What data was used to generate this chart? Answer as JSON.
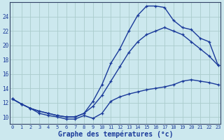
{
  "title": "",
  "xlabel": "Graphe des températures (°c)",
  "ylabel": "",
  "background_color": "#cce8ee",
  "grid_color": "#aacccc",
  "line_color": "#1a3a9a",
  "xlim": [
    -0.3,
    23.3
  ],
  "ylim": [
    9.0,
    26.0
  ],
  "yticks": [
    10,
    12,
    14,
    16,
    18,
    20,
    22,
    24
  ],
  "xticks": [
    0,
    1,
    2,
    3,
    4,
    5,
    6,
    7,
    8,
    9,
    10,
    11,
    12,
    13,
    14,
    15,
    16,
    17,
    18,
    19,
    20,
    21,
    22,
    23
  ],
  "curve_min_x": [
    0,
    1,
    2,
    3,
    4,
    5,
    6,
    7,
    8,
    9,
    10,
    11,
    12,
    13,
    14,
    15,
    16,
    17,
    18,
    19,
    20,
    21,
    22,
    23
  ],
  "curve_min_y": [
    12.5,
    11.8,
    11.2,
    10.5,
    10.2,
    10.0,
    9.7,
    9.7,
    10.2,
    9.8,
    10.5,
    12.2,
    12.8,
    13.2,
    13.5,
    13.8,
    14.0,
    14.2,
    14.5,
    15.0,
    15.2,
    15.0,
    14.8,
    14.5
  ],
  "curve_avg_x": [
    0,
    1,
    2,
    3,
    4,
    5,
    6,
    7,
    8,
    9,
    10,
    11,
    12,
    13,
    14,
    15,
    16,
    17,
    18,
    19,
    20,
    21,
    22,
    23
  ],
  "curve_avg_y": [
    12.5,
    11.8,
    11.2,
    10.8,
    10.5,
    10.2,
    10.0,
    10.0,
    10.5,
    11.5,
    13.0,
    15.0,
    17.0,
    19.0,
    20.5,
    21.5,
    22.0,
    22.5,
    22.0,
    21.5,
    20.5,
    19.5,
    18.5,
    17.2
  ],
  "curve_max_x": [
    0,
    1,
    2,
    3,
    4,
    5,
    6,
    7,
    8,
    9,
    10,
    11,
    12,
    13,
    14,
    15,
    16,
    17,
    18,
    19,
    20,
    21,
    22,
    23
  ],
  "curve_max_y": [
    12.5,
    11.8,
    11.2,
    10.8,
    10.5,
    10.2,
    10.0,
    10.0,
    10.5,
    12.2,
    14.5,
    17.5,
    19.5,
    22.0,
    24.2,
    25.5,
    25.5,
    25.3,
    23.5,
    22.5,
    22.2,
    21.0,
    20.5,
    17.2
  ]
}
